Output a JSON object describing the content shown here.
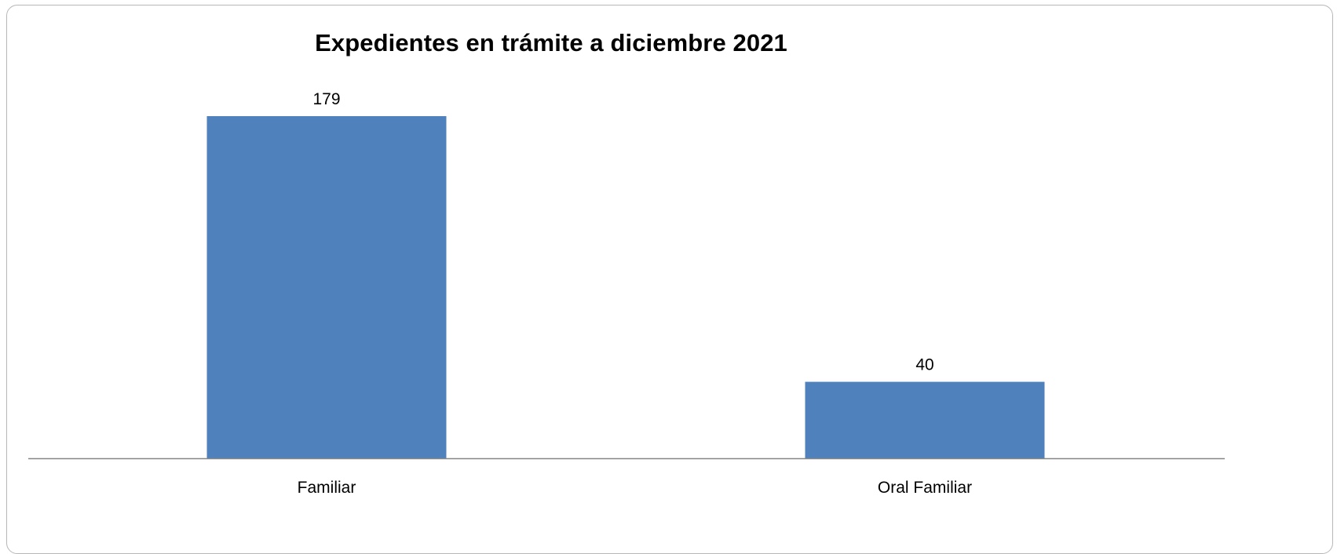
{
  "chart_data": {
    "type": "bar",
    "title": "Expedientes en trámite a diciembre 2021",
    "xlabel": "",
    "ylabel": "",
    "categories": [
      "Familiar",
      "Oral Familiar"
    ],
    "values": [
      179,
      40
    ],
    "data_labels": [
      "179",
      "40"
    ],
    "ylim": [
      0,
      179
    ],
    "grid": false,
    "legend": "none",
    "colors": {
      "bar": "#4f81bd",
      "axis": "#868686",
      "border": "#b7b7b7",
      "text": "#000000"
    }
  }
}
